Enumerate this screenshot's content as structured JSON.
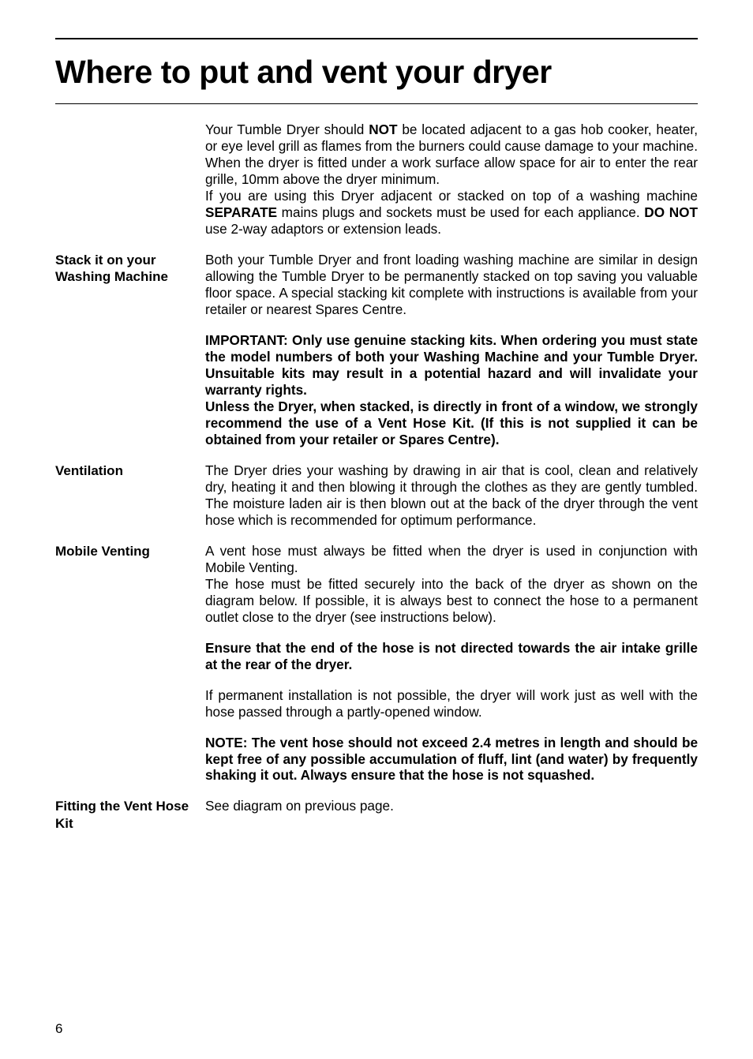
{
  "title": "Where to put and vent your dryer",
  "intro": {
    "para1_a": "Your Tumble Dryer should ",
    "para1_b": "NOT",
    "para1_c": " be located adjacent to a gas hob cooker, heater, or eye level grill as flames from the burners could cause damage to your machine. When the dryer is fitted under a work surface allow space for air to enter the rear grille, 10mm above the dryer minimum.",
    "para2_a": "If you are using this Dryer adjacent or stacked on top of a washing machine ",
    "para2_b": "SEPARATE",
    "para2_c": " mains plugs and sockets must be used for each appliance. ",
    "para2_d": "DO NOT",
    "para2_e": " use 2-way adaptors or extension leads."
  },
  "stack": {
    "label": "Stack it on your Washing Machine",
    "para1": "Both your Tumble Dryer and front loading washing machine are similar in design allowing the Tumble Dryer to be permanently stacked on top saving you valuable floor space. A special stacking kit complete with instructions is available from your retailer or nearest Spares Centre.",
    "important": "IMPORTANT: Only use genuine stacking kits. When ordering you must state the model numbers of both your Washing Machine and your Tumble Dryer. Unsuitable kits may result in a potential hazard and will invalidate your warranty rights.",
    "unless": "Unless the Dryer, when stacked, is directly in front of a window, we strongly recommend the use of a Vent Hose Kit. (If this is not supplied it can be obtained from your retailer or Spares Centre)."
  },
  "ventilation": {
    "label": "Ventilation",
    "para1": "The Dryer dries your washing by drawing in air that is cool, clean and relatively dry, heating it and then blowing it through the clothes as they are gently tumbled. The moisture laden air is then blown out at the back of the dryer through the vent hose which is recommended for optimum performance."
  },
  "mobile": {
    "label": "Mobile Venting",
    "para1": "A vent hose must always be fitted when the dryer is used in conjunction with Mobile Venting.",
    "para2": "The hose must be fitted securely into the back of the dryer as shown on the diagram below. If possible, it is always best to connect the hose to a permanent outlet close to the dryer (see instructions below).",
    "ensure": "Ensure that the end of the hose is not directed towards the air intake grille at the rear of the dryer.",
    "para3": "If permanent installation is not possible, the dryer will work just as well with the hose passed through a partly-opened window.",
    "note": "NOTE: The vent hose should not exceed 2.4 metres in length and should be kept free of any possible accumulation of fluff, lint (and water) by frequently shaking it out. Always ensure that the hose is not squashed."
  },
  "fitting": {
    "label": "Fitting the Vent Hose Kit",
    "para1": "See diagram on previous page."
  },
  "pageNumber": "6"
}
